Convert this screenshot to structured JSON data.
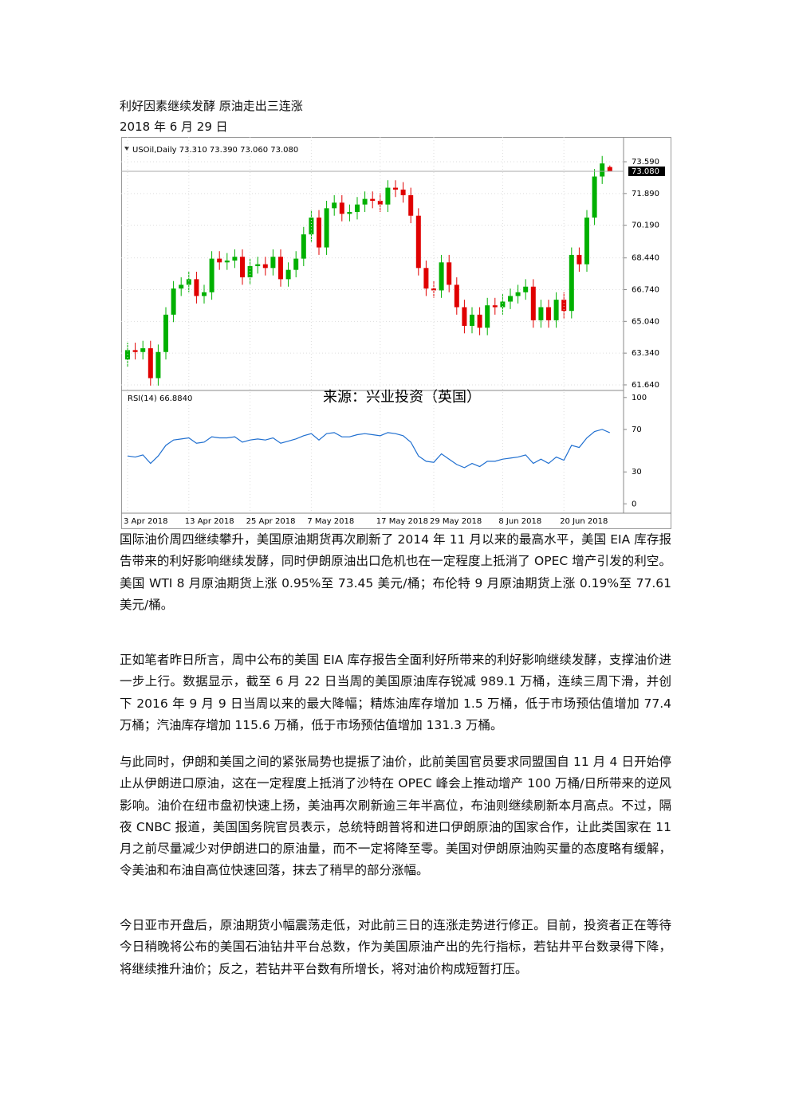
{
  "document": {
    "title": "利好因素继续发酵 原油走出三连涨",
    "date": "2018 年 6 月 29 日",
    "paragraphs": [
      "国际油价周四继续攀升，美国原油期货再次刷新了 2014 年 11 月以来的最高水平，美国 EIA 库存报告带来的利好影响继续发酵，同时伊朗原油出口危机也在一定程度上抵消了 OPEC 增产引发的利空。美国 WTI 8 月原油期货上涨 0.95%至 73.45 美元/桶；布伦特 9 月原油期货上涨 0.19%至 77.61 美元/桶。",
      "正如笔者昨日所言，周中公布的美国 EIA 库存报告全面利好所带来的利好影响继续发酵，支撑油价进一步上行。数据显示，截至 6 月 22 日当周的美国原油库存锐减 989.1 万桶，连续三周下滑，并创下 2016 年 9 月 9 日当周以来的最大降幅；精炼油库存增加 1.5 万桶，低于市场预估值增加 77.4 万桶；汽油库存增加 115.6 万桶，低于市场预估值增加 131.3 万桶。",
      "与此同时，伊朗和美国之间的紧张局势也提振了油价，此前美国官员要求同盟国自 11 月 4 日开始停止从伊朗进口原油，这在一定程度上抵消了沙特在 OPEC 峰会上推动增产 100 万桶/日所带来的逆风影响。油价在纽市盘初快速上扬，美油再次刷新逾三年半高位，布油则继续刷新本月高点。不过，隔夜 CNBC 报道，美国国务院官员表示，总统特朗普将和进口伊朗原油的国家合作，让此类国家在 11 月之前尽量减少对伊朗进口的原油量，而不一定将降至零。美国对伊朗原油购买量的态度略有缓解，令美油和布油自高位快速回落，抹去了稍早的部分涨幅。",
      "今日亚市开盘后，原油期货小幅震荡走低，对此前三日的连涨走势进行修正。目前，投资者正在等待今日稍晚将公布的美国石油钻井平台总数，作为美国原油产出的先行指标，若钻井平台数录得下降，将继续推升油价；反之，若钻井平台数有所增长，将对油价构成短暂打压。"
    ]
  },
  "chart_data": {
    "type": "candlestick",
    "title": "USOil,Daily  73.310 73.390 73.060 73.080",
    "annotation": "来源：兴业投资（英国）",
    "up_color": "#00b000",
    "down_color": "#e00000",
    "categories": [
      "3 Apr 2018",
      null,
      null,
      null,
      null,
      null,
      null,
      null,
      "13 Apr 2018",
      null,
      null,
      null,
      null,
      null,
      null,
      null,
      "25 Apr 2018",
      null,
      null,
      null,
      null,
      null,
      null,
      null,
      "7 May 2018",
      null,
      null,
      null,
      null,
      null,
      null,
      null,
      null,
      "17 May 2018",
      null,
      null,
      null,
      null,
      null,
      null,
      "29 May 2018",
      null,
      null,
      null,
      null,
      null,
      null,
      null,
      null,
      "8 Jun 2018",
      null,
      null,
      null,
      null,
      null,
      null,
      null,
      "20 Jun 2018",
      null,
      null,
      null,
      null,
      null,
      null
    ],
    "open": [
      63.0,
      63.5,
      63.4,
      63.6,
      62.0,
      63.4,
      65.4,
      66.8,
      67.0,
      67.3,
      66.4,
      66.6,
      68.4,
      68.2,
      68.3,
      68.5,
      67.4,
      68.0,
      68.1,
      67.9,
      68.5,
      67.3,
      67.8,
      68.4,
      69.7,
      70.6,
      69.0,
      71.1,
      71.4,
      70.8,
      70.9,
      71.3,
      71.6,
      71.5,
      71.3,
      72.2,
      72.1,
      71.8,
      70.7,
      67.9,
      66.8,
      66.7,
      68.2,
      67.0,
      65.8,
      64.8,
      65.4,
      64.7,
      65.9,
      65.8,
      66.1,
      66.4,
      66.6,
      66.9,
      65.1,
      65.8,
      65.1,
      66.2,
      65.6,
      68.6,
      68.1,
      70.6,
      72.8,
      73.31
    ],
    "high": [
      63.9,
      63.9,
      64.0,
      64.0,
      63.8,
      65.8,
      67.2,
      67.4,
      67.7,
      67.7,
      67.0,
      68.8,
      68.8,
      68.7,
      68.9,
      68.9,
      68.4,
      68.5,
      68.5,
      68.9,
      68.9,
      68.2,
      68.8,
      70.1,
      71.0,
      71.0,
      71.5,
      71.8,
      71.8,
      71.3,
      71.7,
      72.0,
      72.0,
      71.9,
      72.6,
      72.6,
      72.5,
      72.2,
      71.1,
      68.3,
      67.2,
      68.6,
      68.6,
      67.4,
      66.2,
      65.8,
      65.8,
      66.3,
      66.3,
      66.5,
      66.8,
      67.0,
      67.3,
      67.3,
      66.2,
      66.2,
      66.6,
      66.6,
      69.0,
      69.0,
      71.0,
      73.2,
      73.9,
      73.39
    ],
    "low": [
      62.6,
      63.0,
      63.0,
      61.6,
      61.6,
      63.0,
      65.0,
      66.4,
      66.6,
      66.0,
      66.0,
      66.2,
      67.8,
      67.8,
      67.9,
      67.0,
      67.0,
      67.6,
      67.5,
      67.5,
      66.9,
      66.9,
      67.4,
      68.0,
      69.3,
      68.6,
      68.6,
      70.7,
      70.4,
      70.4,
      70.5,
      70.9,
      71.1,
      70.9,
      70.9,
      71.7,
      71.4,
      70.3,
      67.5,
      66.4,
      66.3,
      66.3,
      66.6,
      65.4,
      64.4,
      64.4,
      64.3,
      64.3,
      65.4,
      65.4,
      65.7,
      66.0,
      66.2,
      64.7,
      64.7,
      64.7,
      64.7,
      65.2,
      65.2,
      67.7,
      67.7,
      70.2,
      72.4,
      73.06
    ],
    "close": [
      63.5,
      63.4,
      63.6,
      62.0,
      63.4,
      65.4,
      66.8,
      67.0,
      67.3,
      66.4,
      66.6,
      68.4,
      68.2,
      68.3,
      68.5,
      67.4,
      68.0,
      68.1,
      67.9,
      68.5,
      67.3,
      67.8,
      68.4,
      69.7,
      70.6,
      69.0,
      71.1,
      71.4,
      70.8,
      70.9,
      71.3,
      71.6,
      71.5,
      71.3,
      72.2,
      72.1,
      71.8,
      70.7,
      67.9,
      66.8,
      66.7,
      68.2,
      67.0,
      65.8,
      64.8,
      65.4,
      64.7,
      65.9,
      65.8,
      66.1,
      66.4,
      66.6,
      66.9,
      65.1,
      65.8,
      65.1,
      66.2,
      65.6,
      68.6,
      68.1,
      70.6,
      72.8,
      73.5,
      73.08
    ],
    "ylim": [
      61.34,
      74.7
    ],
    "yticks": [
      {
        "value": 73.59,
        "label": "73.590"
      },
      {
        "value": 71.89,
        "label": "71.890"
      },
      {
        "value": 70.19,
        "label": "70.190"
      },
      {
        "value": 68.44,
        "label": "68.440"
      },
      {
        "value": 66.74,
        "label": "66.740"
      },
      {
        "value": 65.04,
        "label": "65.040"
      },
      {
        "value": 63.34,
        "label": "63.340"
      },
      {
        "value": 61.64,
        "label": "61.640"
      }
    ],
    "last_price": {
      "value": 73.08,
      "label": "73.080"
    },
    "rsi": {
      "name": "RSI(14) 66.8840",
      "color": "#1f6fd0",
      "values": [
        45,
        44,
        46,
        38,
        45,
        55,
        60,
        61,
        62,
        57,
        58,
        63,
        62,
        62,
        63,
        58,
        60,
        61,
        60,
        62,
        57,
        59,
        61,
        64,
        66,
        60,
        66,
        67,
        63,
        63,
        65,
        66,
        65,
        64,
        67,
        66,
        64,
        58,
        45,
        40,
        39,
        47,
        42,
        37,
        34,
        38,
        35,
        40,
        40,
        42,
        43,
        44,
        46,
        38,
        42,
        38,
        44,
        41,
        55,
        53,
        62,
        68,
        70,
        66.884
      ],
      "ylim": [
        -8.8,
        106.6
      ],
      "yticks": [
        100,
        70,
        30,
        0
      ]
    }
  }
}
